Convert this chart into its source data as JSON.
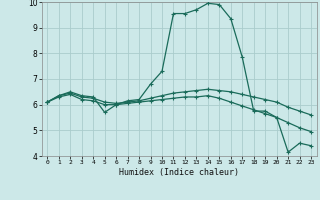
{
  "xlabel": "Humidex (Indice chaleur)",
  "xlim": [
    -0.5,
    23.5
  ],
  "ylim": [
    4,
    10
  ],
  "xticks": [
    0,
    1,
    2,
    3,
    4,
    5,
    6,
    7,
    8,
    9,
    10,
    11,
    12,
    13,
    14,
    15,
    16,
    17,
    18,
    19,
    20,
    21,
    22,
    23
  ],
  "yticks": [
    4,
    5,
    6,
    7,
    8,
    9,
    10
  ],
  "bg_color": "#cce8e8",
  "grid_color": "#aacccc",
  "line_color": "#1a6b5a",
  "lines": [
    {
      "x": [
        0,
        1,
        2,
        3,
        4,
        5,
        6,
        7,
        8,
        9,
        10,
        11,
        12,
        13,
        14,
        15,
        16,
        17,
        18,
        19,
        20,
        21,
        22,
        23
      ],
      "y": [
        6.1,
        6.35,
        6.5,
        6.35,
        6.3,
        5.7,
        6.0,
        6.15,
        6.2,
        6.8,
        7.3,
        9.55,
        9.55,
        9.7,
        9.95,
        9.9,
        9.35,
        7.85,
        5.75,
        5.75,
        5.5,
        4.15,
        4.5,
        4.4
      ]
    },
    {
      "x": [
        0,
        1,
        2,
        3,
        4,
        5,
        6,
        7,
        8,
        9,
        10,
        11,
        12,
        13,
        14,
        15,
        16,
        17,
        18,
        19,
        20,
        21,
        22,
        23
      ],
      "y": [
        6.1,
        6.35,
        6.45,
        6.3,
        6.25,
        6.1,
        6.05,
        6.1,
        6.15,
        6.25,
        6.35,
        6.45,
        6.5,
        6.55,
        6.6,
        6.55,
        6.5,
        6.4,
        6.3,
        6.2,
        6.1,
        5.9,
        5.75,
        5.6
      ]
    },
    {
      "x": [
        0,
        1,
        2,
        3,
        4,
        5,
        6,
        7,
        8,
        9,
        10,
        11,
        12,
        13,
        14,
        15,
        16,
        17,
        18,
        19,
        20,
        21,
        22,
        23
      ],
      "y": [
        6.1,
        6.3,
        6.4,
        6.2,
        6.15,
        6.0,
        6.0,
        6.05,
        6.1,
        6.15,
        6.2,
        6.25,
        6.3,
        6.3,
        6.35,
        6.25,
        6.1,
        5.95,
        5.8,
        5.65,
        5.5,
        5.3,
        5.1,
        4.95
      ]
    }
  ]
}
